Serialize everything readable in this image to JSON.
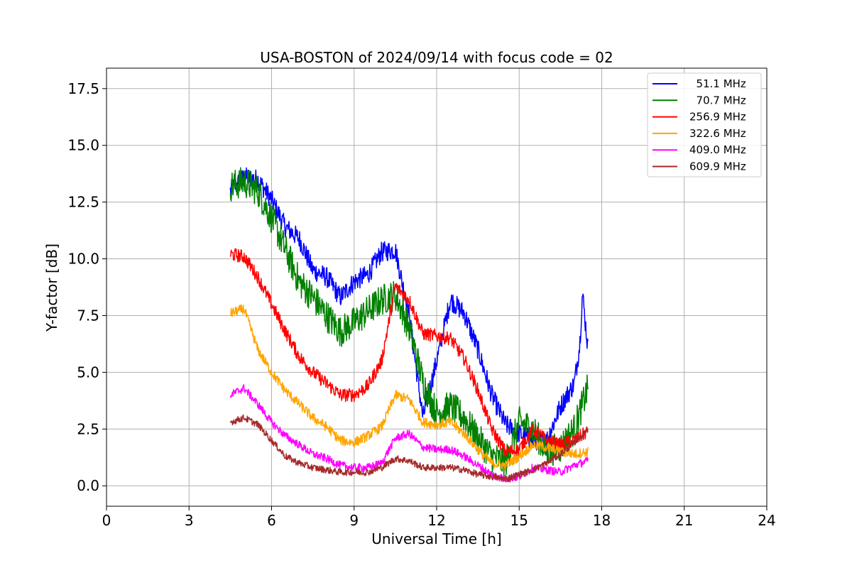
{
  "chart_data": {
    "type": "line",
    "title": "USA-BOSTON of 2024/09/14 with focus code = 02",
    "xlabel": "Universal Time [h]",
    "ylabel": "Y-factor [dB]",
    "xlim": [
      0,
      24
    ],
    "ylim": [
      -0.9,
      18.4
    ],
    "xticks": [
      0,
      3,
      6,
      9,
      12,
      15,
      18,
      21,
      24
    ],
    "xtick_labels": [
      "0",
      "3",
      "6",
      "9",
      "12",
      "15",
      "18",
      "21",
      "24"
    ],
    "yticks": [
      0,
      2.5,
      5,
      7.5,
      10,
      12.5,
      15,
      17.5
    ],
    "ytick_labels": [
      "0.0",
      "2.5",
      "5.0",
      "7.5",
      "10.0",
      "12.5",
      "15.0",
      "17.5"
    ],
    "grid": true,
    "legend_position": "top-right",
    "series": [
      {
        "name": "  51.1 MHz",
        "color": "#0000ff",
        "noise": 0.45,
        "x": [
          4.5,
          5.0,
          5.5,
          6.0,
          6.5,
          7.0,
          7.5,
          8.0,
          8.5,
          9.0,
          9.5,
          10.0,
          10.5,
          11.0,
          11.5,
          12.0,
          12.5,
          13.0,
          13.5,
          14.0,
          14.5,
          15.0,
          15.5,
          16.0,
          16.5,
          17.0,
          17.2,
          17.3,
          17.5
        ],
        "y": [
          13.0,
          13.6,
          13.5,
          12.6,
          11.4,
          10.9,
          9.5,
          9.2,
          8.3,
          9.0,
          9.3,
          10.3,
          10.4,
          7.5,
          3.0,
          5.5,
          8.2,
          7.6,
          6.0,
          4.0,
          2.7,
          2.3,
          2.0,
          2.0,
          3.5,
          4.5,
          6.2,
          8.5,
          6.0
        ]
      },
      {
        "name": "  70.7 MHz",
        "color": "#008000",
        "noise": 0.7,
        "x": [
          4.5,
          5.0,
          5.5,
          6.0,
          6.5,
          7.0,
          7.5,
          8.0,
          8.5,
          9.0,
          9.5,
          10.0,
          10.5,
          11.0,
          11.5,
          12.0,
          12.5,
          13.0,
          13.5,
          14.0,
          14.5,
          15.0,
          15.5,
          16.0,
          16.5,
          17.0,
          17.5
        ],
        "y": [
          13.2,
          13.4,
          13.0,
          11.8,
          10.4,
          9.0,
          8.3,
          7.5,
          6.8,
          7.2,
          7.7,
          8.2,
          8.4,
          7.0,
          4.6,
          3.2,
          3.5,
          3.0,
          2.1,
          1.3,
          1.0,
          2.8,
          2.5,
          1.5,
          1.7,
          2.5,
          4.3
        ]
      },
      {
        "name": "256.9 MHz",
        "color": "#ff0000",
        "noise": 0.3,
        "x": [
          4.5,
          5.0,
          5.5,
          6.0,
          6.5,
          7.0,
          7.5,
          8.0,
          8.5,
          9.0,
          9.5,
          10.0,
          10.5,
          11.0,
          11.5,
          12.0,
          12.5,
          13.0,
          13.5,
          14.0,
          14.5,
          15.0,
          15.5,
          16.0,
          16.5,
          17.0,
          17.5
        ],
        "y": [
          10.2,
          10.1,
          9.2,
          8.0,
          6.8,
          5.7,
          5.0,
          4.5,
          4.0,
          4.0,
          4.4,
          5.5,
          8.8,
          8.2,
          6.7,
          6.6,
          6.5,
          5.6,
          4.2,
          2.5,
          1.5,
          1.6,
          2.5,
          2.0,
          1.8,
          2.0,
          2.4
        ]
      },
      {
        "name": "322.6 MHz",
        "color": "#ffa500",
        "noise": 0.22,
        "x": [
          4.5,
          5.0,
          5.5,
          6.0,
          6.5,
          7.0,
          7.5,
          8.0,
          8.5,
          9.0,
          9.5,
          10.0,
          10.5,
          11.0,
          11.5,
          12.0,
          12.5,
          13.0,
          13.5,
          14.0,
          14.5,
          15.0,
          15.5,
          16.0,
          16.5,
          17.0,
          17.5
        ],
        "y": [
          7.6,
          7.8,
          6.0,
          5.0,
          4.2,
          3.6,
          3.0,
          2.6,
          2.0,
          1.9,
          2.2,
          2.6,
          4.0,
          3.8,
          2.8,
          2.7,
          2.8,
          2.3,
          1.6,
          1.0,
          0.9,
          1.3,
          1.8,
          1.7,
          1.5,
          1.4,
          1.5
        ]
      },
      {
        "name": "409.0 MHz",
        "color": "#ff00ff",
        "noise": 0.18,
        "x": [
          4.5,
          5.0,
          5.5,
          6.0,
          6.5,
          7.0,
          7.5,
          8.0,
          8.5,
          9.0,
          9.5,
          10.0,
          10.5,
          11.0,
          11.5,
          12.0,
          12.5,
          13.0,
          13.5,
          14.0,
          14.5,
          15.0,
          15.5,
          16.0,
          16.5,
          17.0,
          17.5
        ],
        "y": [
          4.0,
          4.3,
          3.6,
          2.8,
          2.2,
          1.8,
          1.4,
          1.2,
          0.9,
          0.8,
          0.8,
          1.0,
          2.1,
          2.3,
          1.7,
          1.6,
          1.6,
          1.3,
          0.9,
          0.5,
          0.3,
          0.4,
          0.8,
          0.7,
          0.6,
          0.9,
          1.1
        ]
      },
      {
        "name": "609.9 MHz",
        "color": "#a52a2a",
        "noise": 0.15,
        "x": [
          4.5,
          5.0,
          5.5,
          6.0,
          6.5,
          7.0,
          7.5,
          8.0,
          8.5,
          9.0,
          9.5,
          10.0,
          10.5,
          11.0,
          11.5,
          12.0,
          12.5,
          13.0,
          13.5,
          14.0,
          14.5,
          15.0,
          15.5,
          16.0,
          16.5,
          17.0,
          17.5
        ],
        "y": [
          2.8,
          3.0,
          2.7,
          2.0,
          1.3,
          1.0,
          0.8,
          0.7,
          0.6,
          0.6,
          0.6,
          0.8,
          1.2,
          1.1,
          0.8,
          0.8,
          0.8,
          0.7,
          0.5,
          0.4,
          0.3,
          0.5,
          0.7,
          1.0,
          1.4,
          1.9,
          2.5
        ]
      }
    ]
  }
}
